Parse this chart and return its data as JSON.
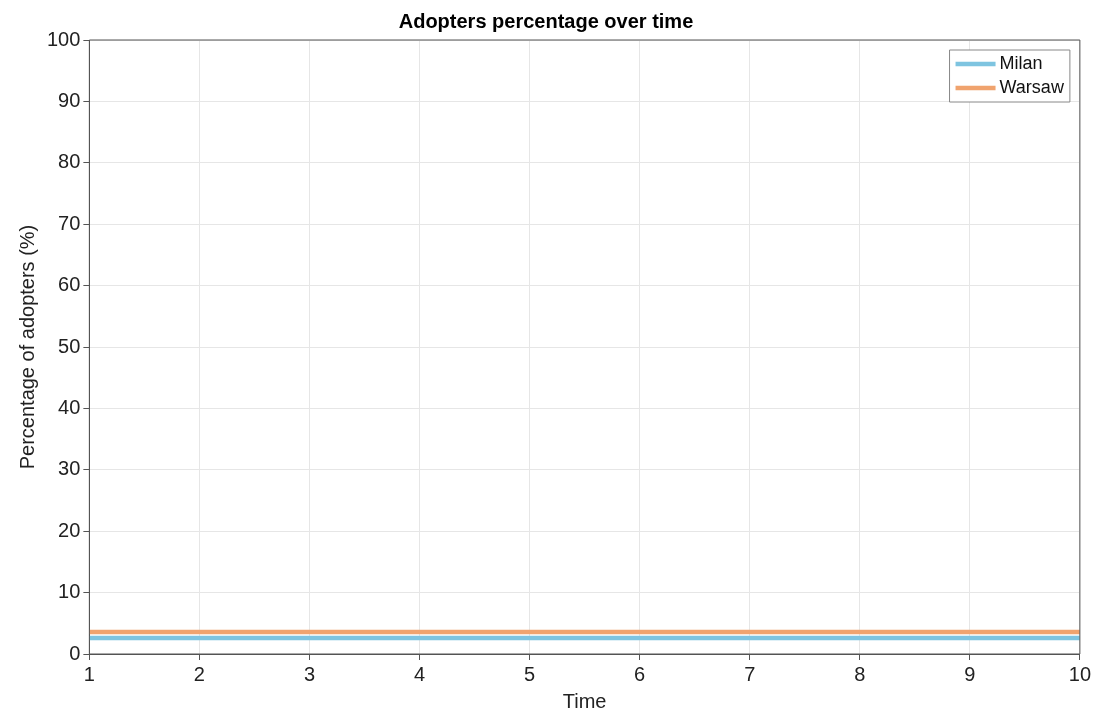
{
  "chart_data": {
    "type": "line",
    "title": "Adopters percentage over time",
    "xlabel": "Time",
    "ylabel": "Percentage of adopters (%)",
    "categories": [
      "1",
      "2",
      "3",
      "4",
      "5",
      "6",
      "7",
      "8",
      "9",
      "10"
    ],
    "series": [
      {
        "name": "Milan",
        "color": "#7ec4e0",
        "values": [
          2.6,
          2.6,
          2.6,
          2.6,
          2.6,
          2.6,
          2.6,
          2.6,
          2.6,
          2.6
        ]
      },
      {
        "name": "Warsaw",
        "color": "#f0a36e",
        "values": [
          3.6,
          3.6,
          3.6,
          3.6,
          3.6,
          3.6,
          3.6,
          3.6,
          3.6,
          3.6
        ]
      }
    ],
    "ylim": [
      0,
      100
    ],
    "yticks": [
      0,
      10,
      20,
      30,
      40,
      50,
      60,
      70,
      80,
      90,
      100
    ],
    "grid": true,
    "legend": "top right",
    "marker": "none",
    "line_style": "solid"
  }
}
